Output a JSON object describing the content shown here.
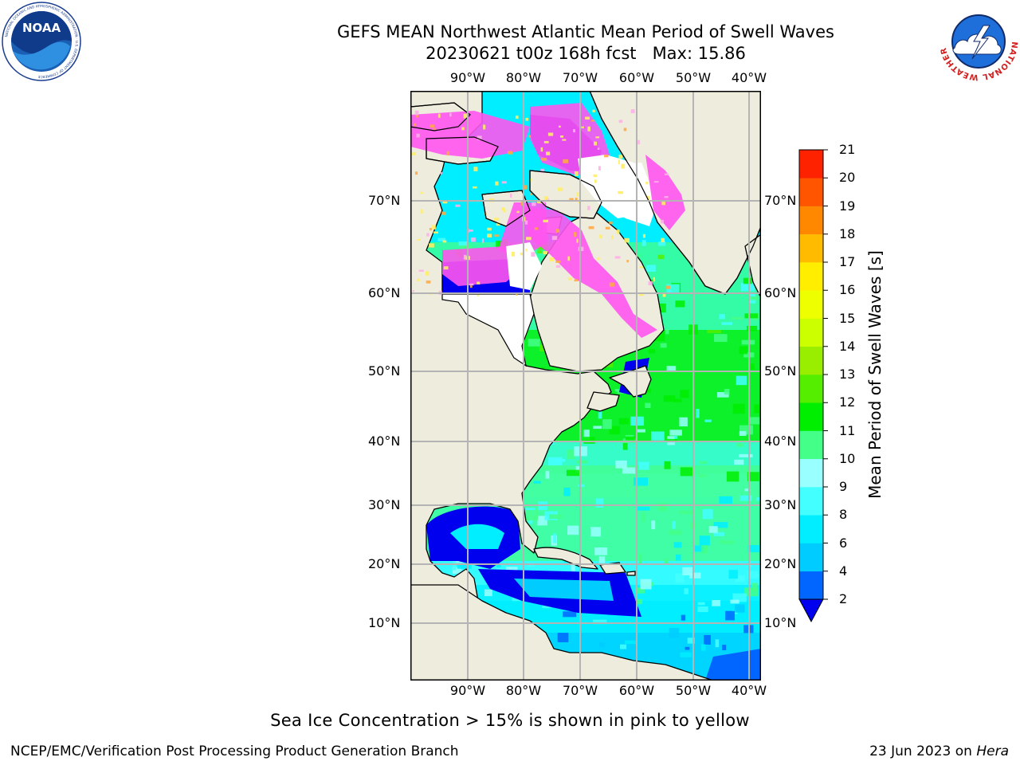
{
  "title": {
    "line1": "GEFS MEAN Northwest Atlantic Mean Period of Swell Waves",
    "line2": "20230621 t00z 168h fcst   Max: 15.86"
  },
  "logos": {
    "left": {
      "name": "noaa-logo",
      "text": "NOAA",
      "ring_text": "NATIONAL OCEANIC AND ATMOSPHERIC ADMINISTRATION · U.S. DEPARTMENT OF COMMERCE"
    },
    "right": {
      "name": "nws-logo",
      "ring_text": "NATIONAL WEATHER SERVICE"
    }
  },
  "map": {
    "region": "Northwest Atlantic",
    "lon_ticks": [
      "90°W",
      "80°W",
      "70°W",
      "60°W",
      "50°W",
      "40°W"
    ],
    "lat_ticks": [
      "70°N",
      "60°N",
      "50°N",
      "40°N",
      "30°N",
      "20°N",
      "10°N"
    ],
    "colors": {
      "land": "#eeecdc",
      "coast": "#000000",
      "grid": "#b4b4b4",
      "ice_pink": "#ff55ee",
      "ice_light": "#ffb0e8",
      "ice_yellow": "#ffee66",
      "ice_orange": "#ffaa44"
    }
  },
  "colorbar": {
    "label": "Mean Period of Swell Waves [s]",
    "tick_labels": [
      "2",
      "4",
      "6",
      "8",
      "9",
      "10",
      "11",
      "12",
      "13",
      "14",
      "15",
      "16",
      "17",
      "18",
      "19",
      "20",
      "21"
    ],
    "bounds": [
      2,
      4,
      6,
      8,
      9,
      10,
      11,
      12,
      13,
      14,
      15,
      16,
      17,
      18,
      19,
      20,
      21
    ],
    "colors": [
      "#0066ff",
      "#00ccff",
      "#00eeff",
      "#44ffff",
      "#99ffff",
      "#44ff88",
      "#00ee00",
      "#55ee00",
      "#99ee00",
      "#ccff00",
      "#eeff00",
      "#ffee00",
      "#ffbb00",
      "#ff8800",
      "#ff5500",
      "#ff2200",
      "#ff0000"
    ],
    "under_color": "#0000ee",
    "extend": "min"
  },
  "footnote": "Sea Ice Concentration > 15% is shown in pink to yellow",
  "credits": {
    "left": "NCEP/EMC/Verification Post Processing Product Generation Branch",
    "right_date": "23 Jun 2023 on",
    "right_machine": "Hera"
  }
}
